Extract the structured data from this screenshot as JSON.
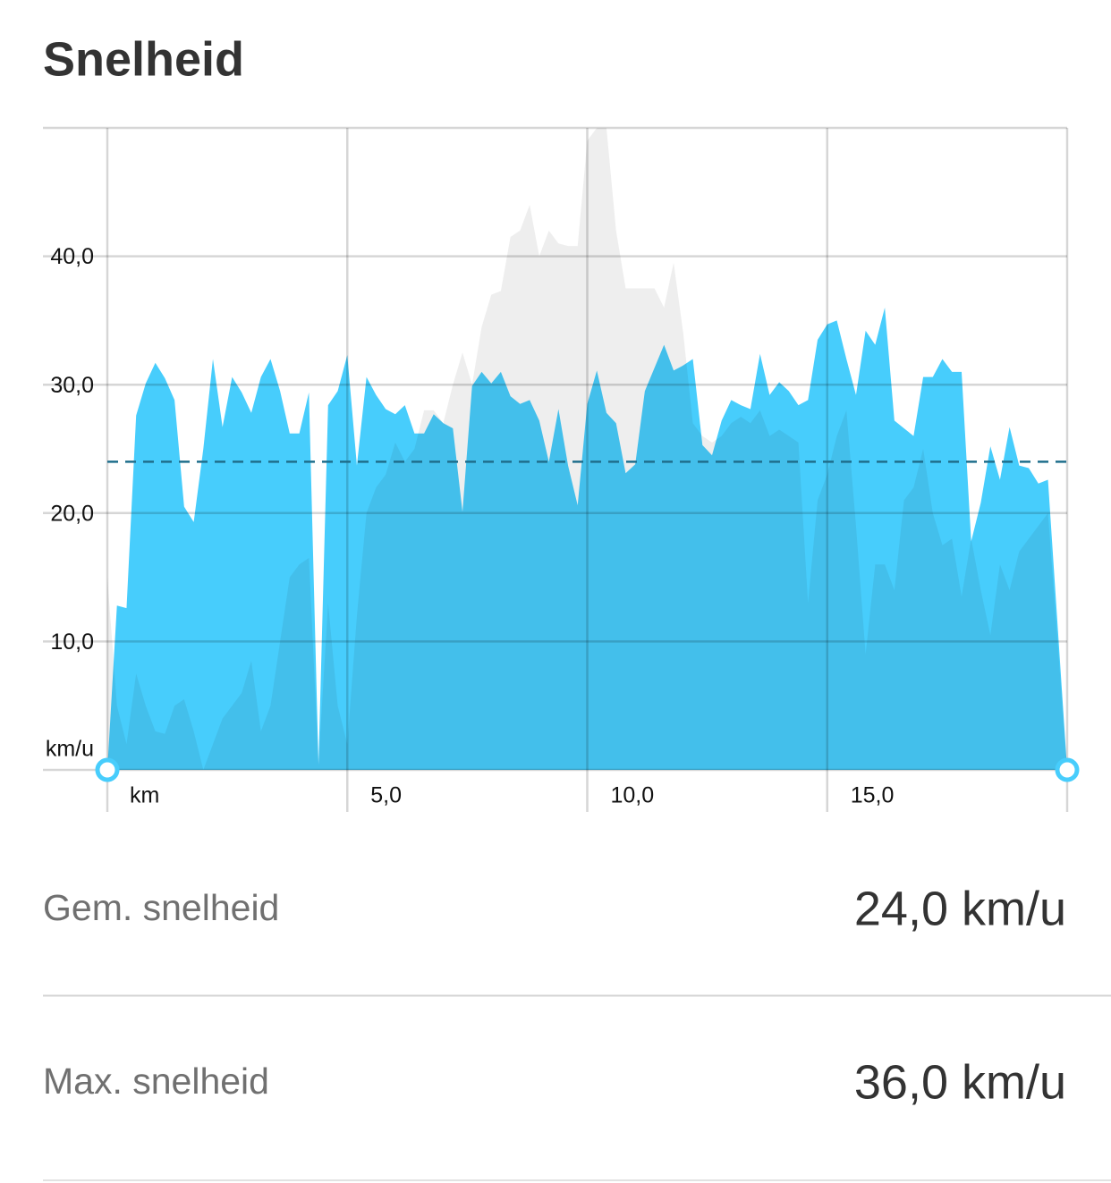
{
  "title": "Snelheid",
  "chart_data": {
    "type": "area",
    "y_unit": "km/u",
    "x_unit": "km",
    "x": [
      0,
      0.2,
      0.4,
      0.6,
      0.8,
      1,
      1.2,
      1.4,
      1.6,
      1.8,
      2,
      2.2,
      2.4,
      2.6,
      2.8,
      3,
      3.2,
      3.4,
      3.6,
      3.8,
      4,
      4.2,
      4.4,
      4.6,
      4.8,
      5,
      5.2,
      5.4,
      5.6,
      5.8,
      6,
      6.2,
      6.4,
      6.6,
      6.8,
      7,
      7.2,
      7.4,
      7.6,
      7.8,
      8,
      8.2,
      8.4,
      8.6,
      8.8,
      9,
      9.2,
      9.4,
      9.6,
      9.8,
      10,
      10.2,
      10.4,
      10.6,
      10.8,
      11,
      11.2,
      11.4,
      11.6,
      11.8,
      12,
      12.2,
      12.4,
      12.6,
      12.8,
      13,
      13.2,
      13.4,
      13.6,
      13.8,
      14,
      14.2,
      14.4,
      14.6,
      14.8,
      15,
      15.2,
      15.4,
      15.6,
      15.8,
      16,
      16.2,
      16.4,
      16.6,
      16.8,
      17,
      17.2,
      17.4,
      17.6,
      17.8,
      18,
      18.2,
      18.4,
      18.6,
      18.8,
      19,
      19.2,
      19.4,
      19.6,
      20
    ],
    "series": [
      {
        "color": "#47cdfc",
        "values": [
          0,
          12.8,
          12.6,
          27.6,
          30.1,
          31.7,
          30.5,
          28.8,
          20.5,
          19.3,
          25,
          32,
          26.7,
          30.6,
          29.4,
          27.8,
          30.6,
          32,
          29.5,
          26.2,
          26.2,
          29.4,
          0.4,
          28.4,
          29.5,
          32.3,
          23.7,
          30.6,
          29.2,
          28.1,
          27.7,
          28.4,
          26.2,
          26.2,
          27.7,
          27,
          26.6,
          20.1,
          29.9,
          31,
          30.1,
          31,
          29.1,
          28.5,
          28.8,
          27.2,
          24,
          28.1,
          23.7,
          20.6,
          28.5,
          31.1,
          27.8,
          27,
          23.1,
          23.8,
          29.5,
          31.3,
          33.1,
          31.1,
          31.5,
          32,
          25.3,
          24.5,
          27.2,
          28.8,
          28.4,
          28.1,
          32.4,
          29.2,
          30.2,
          29.5,
          28.4,
          28.8,
          33.5,
          34.7,
          35,
          32,
          29.2,
          34.2,
          33.1,
          36,
          27.2,
          26.6,
          26,
          30.6,
          30.6,
          32,
          31,
          31,
          17.8,
          20.8,
          25.2,
          22.6,
          26.7,
          23.7,
          23.5,
          22.3,
          22.6,
          0
        ]
      },
      {
        "color": "#eeeeee",
        "values": [
          15,
          5,
          2,
          7.5,
          5,
          3,
          2.8,
          5,
          5.5,
          3,
          0,
          2,
          4,
          5,
          6,
          8.5,
          3,
          5,
          10,
          15,
          16,
          16.5,
          0.5,
          13,
          5,
          2,
          12,
          20,
          22,
          23,
          25.5,
          24,
          25,
          28,
          28,
          27,
          30,
          32.5,
          30,
          34.5,
          37,
          37.3,
          41.5,
          42,
          44,
          40,
          42,
          41,
          40.8,
          40.8,
          49,
          50,
          50,
          42,
          37.5,
          37.5,
          37.5,
          37.5,
          36,
          39.5,
          34,
          27,
          26,
          25.5,
          26,
          27,
          27.5,
          27,
          28,
          26,
          26.5,
          26,
          25.5,
          13,
          21,
          23,
          26,
          28,
          19,
          9,
          16,
          16,
          14,
          21,
          22,
          25,
          20,
          17.5,
          18,
          13.5,
          18,
          14,
          10.5,
          16,
          14,
          17,
          18,
          19,
          20,
          0
        ]
      }
    ],
    "average_line": 24,
    "average_color": "#1f6e8c",
    "xlim": [
      0,
      20
    ],
    "ylim": [
      0,
      50
    ],
    "xticks": [
      {
        "value": 5,
        "label": "5,0"
      },
      {
        "value": 10,
        "label": "10,0"
      },
      {
        "value": 15,
        "label": "15,0"
      }
    ],
    "yticks": [
      {
        "value": 10,
        "label": "10,0"
      },
      {
        "value": 20,
        "label": "20,0"
      },
      {
        "value": 30,
        "label": "30,0"
      },
      {
        "value": 40,
        "label": "40,0"
      }
    ],
    "grid": true
  },
  "stats": [
    {
      "label": "Gem. snelheid",
      "value": "24,0 km/u"
    },
    {
      "label": "Max. snelheid",
      "value": "36,0 km/u"
    }
  ]
}
